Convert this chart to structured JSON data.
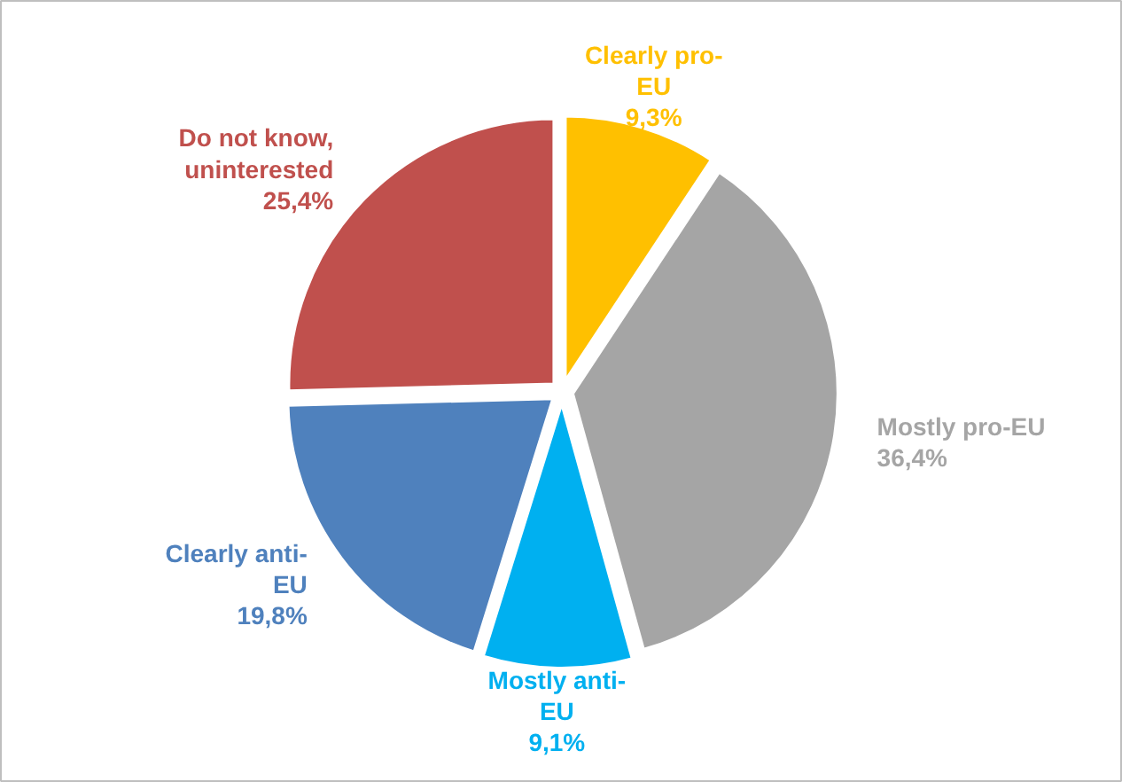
{
  "chart_data": {
    "type": "pie",
    "categories": [
      "Clearly pro-EU",
      "Mostly pro-EU",
      "Mostly anti-EU",
      "Clearly anti-EU",
      "Do not know, uninterested"
    ],
    "values": [
      9.3,
      36.4,
      9.1,
      19.8,
      25.4
    ],
    "value_labels": [
      "9,3%",
      "36,4%",
      "9,1%",
      "19,8%",
      "25,4%"
    ],
    "colors": [
      "#ffc000",
      "#a5a5a5",
      "#00b0f0",
      "#4f81bd",
      "#c0504d"
    ]
  }
}
